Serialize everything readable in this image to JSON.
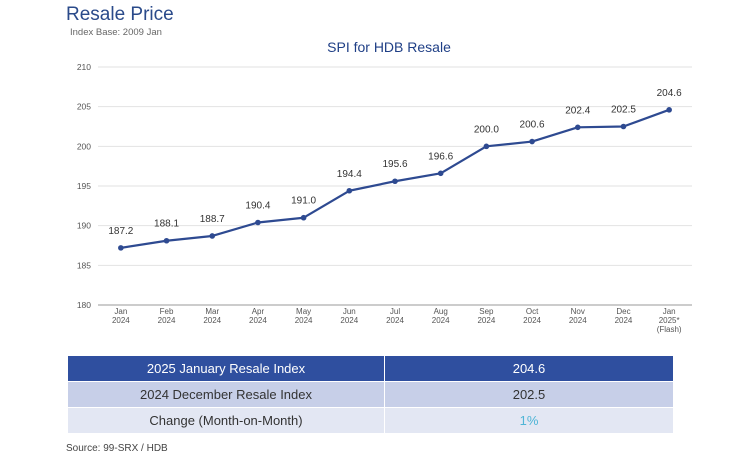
{
  "page": {
    "title": "Resale Price",
    "subtitle": "Index Base: 2009 Jan",
    "source": "Source: 99-SRX / HDB"
  },
  "chart_data": {
    "type": "line",
    "title": "SPI for HDB Resale",
    "xlabel": "",
    "ylabel": "",
    "ylim": [
      180,
      210
    ],
    "yticks": [
      180,
      185,
      190,
      195,
      200,
      205,
      210
    ],
    "grid": true,
    "x": [
      [
        "Jan",
        "2024"
      ],
      [
        "Feb",
        "2024"
      ],
      [
        "Mar",
        "2024"
      ],
      [
        "Apr",
        "2024"
      ],
      [
        "May",
        "2024"
      ],
      [
        "Jun",
        "2024"
      ],
      [
        "Jul",
        "2024"
      ],
      [
        "Aug",
        "2024"
      ],
      [
        "Sep",
        "2024"
      ],
      [
        "Oct",
        "2024"
      ],
      [
        "Nov",
        "2024"
      ],
      [
        "Dec",
        "2024"
      ],
      [
        "Jan",
        "2025*",
        "(Flash)"
      ]
    ],
    "series": [
      {
        "values": [
          187.2,
          188.1,
          188.7,
          190.4,
          191.0,
          194.4,
          195.6,
          196.6,
          200.0,
          200.6,
          202.4,
          202.5,
          204.6
        ],
        "labels": [
          "187.2",
          "188.1",
          "188.7",
          "190.4",
          "191.0",
          "194.4",
          "195.6",
          "196.6",
          "200.0",
          "200.6",
          "202.4",
          "202.5",
          "204.6"
        ],
        "color": "#2e4a91"
      }
    ]
  },
  "summary": {
    "rows": [
      {
        "label": "2025 January Resale Index",
        "value": "204.6"
      },
      {
        "label": "2024 December Resale Index",
        "value": "202.5"
      },
      {
        "label": "Change (Month-on-Month)",
        "value": "1%"
      }
    ]
  },
  "colors": {
    "accent": "#2e4a91",
    "header_row": "#2f4f9f",
    "row_light": "#c7cfe8",
    "row_lighter": "#e3e7f3",
    "change_value": "#4fb5d6"
  }
}
